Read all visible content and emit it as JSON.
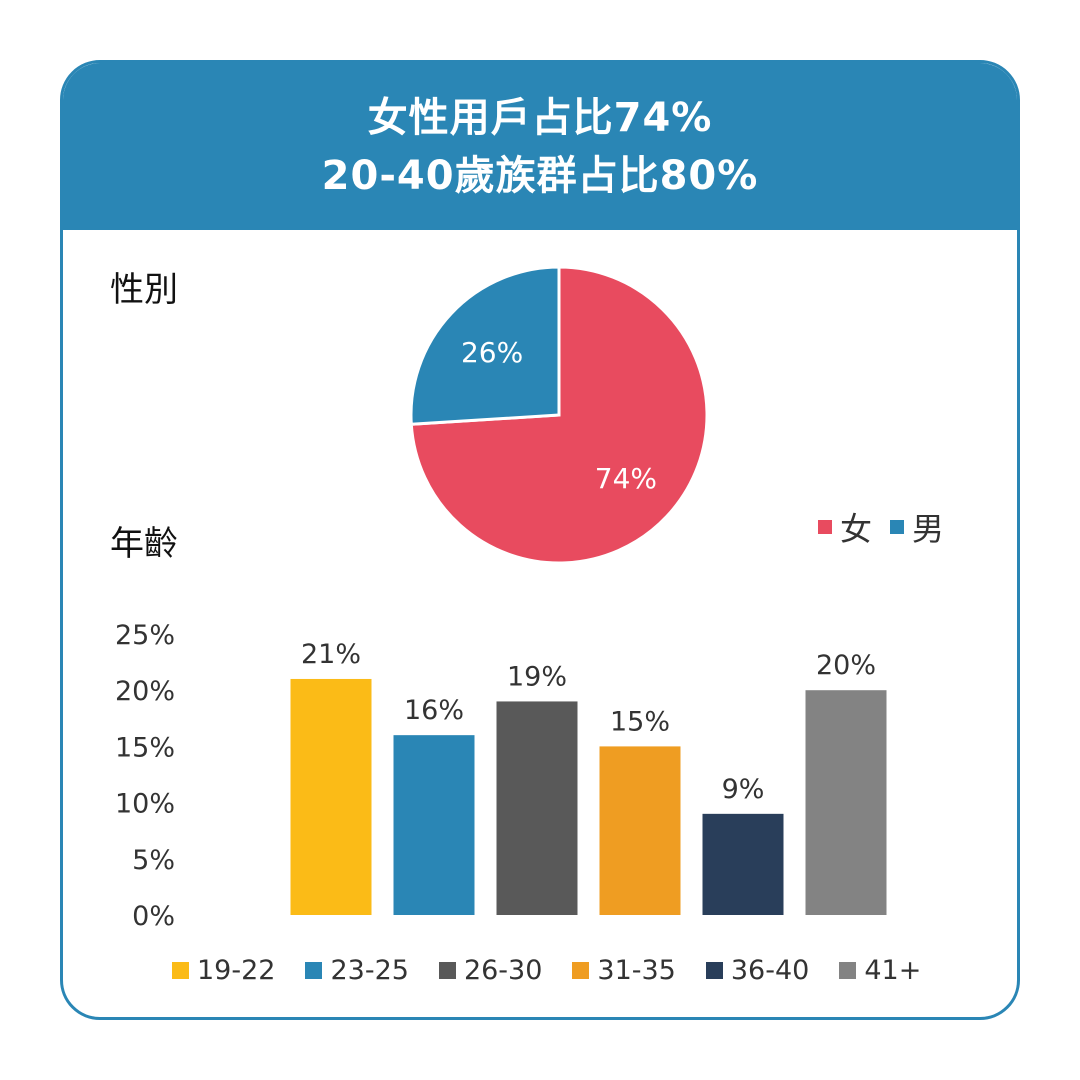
{
  "header": {
    "line1": "女性用戶占比74%",
    "line2": "20-40歲族群占比80%"
  },
  "colors": {
    "brand": "#2a86b5",
    "female": "#e84b5f",
    "male": "#2a86b5"
  },
  "gender_section": {
    "label": "性別"
  },
  "age_section": {
    "label": "年齡"
  },
  "gender_legend": [
    {
      "label": "女",
      "color": "#e84b5f"
    },
    {
      "label": "男",
      "color": "#2a86b5"
    }
  ],
  "chart_data": [
    {
      "type": "pie",
      "title": "性別",
      "categories": [
        "女",
        "男"
      ],
      "values": [
        74,
        26
      ],
      "labels": [
        "74%",
        "26%"
      ],
      "colors": [
        "#e84b5f",
        "#2a86b5"
      ],
      "legend_position": "right"
    },
    {
      "type": "bar",
      "title": "年齡",
      "categories": [
        "19-22",
        "23-25",
        "26-30",
        "31-35",
        "36-40",
        "41+"
      ],
      "values": [
        21,
        16,
        19,
        15,
        9,
        20
      ],
      "labels": [
        "21%",
        "16%",
        "19%",
        "15%",
        "9%",
        "20%"
      ],
      "colors": [
        "#fbbb17",
        "#2a86b5",
        "#595959",
        "#ef9d22",
        "#293e5a",
        "#838383"
      ],
      "ylim": [
        0,
        25
      ],
      "yticks": [
        0,
        5,
        10,
        15,
        20,
        25
      ],
      "ytick_labels": [
        "0%",
        "5%",
        "10%",
        "15%",
        "20%",
        "25%"
      ],
      "grid": false,
      "legend_position": "bottom"
    }
  ]
}
